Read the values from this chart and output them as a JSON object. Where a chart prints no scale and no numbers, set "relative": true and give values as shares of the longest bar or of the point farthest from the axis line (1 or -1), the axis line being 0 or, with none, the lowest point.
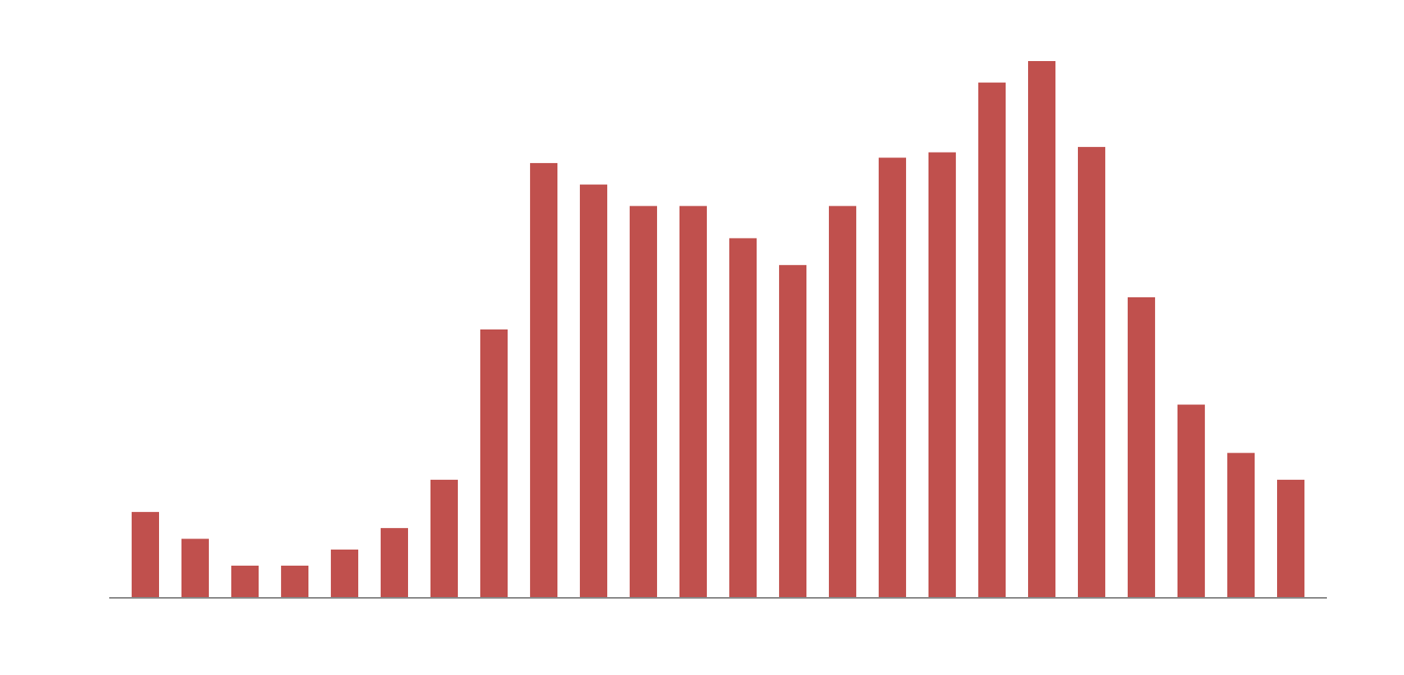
{
  "chart_data": {
    "type": "bar",
    "relative": true,
    "categories": [
      null,
      null,
      null,
      null,
      null,
      null,
      null,
      null,
      null,
      null,
      null,
      null,
      null,
      null,
      null,
      null,
      null,
      null,
      null,
      null,
      null,
      null,
      null,
      null
    ],
    "values": [
      0.16,
      0.11,
      0.06,
      0.06,
      0.09,
      0.13,
      0.22,
      0.5,
      0.81,
      0.77,
      0.73,
      0.73,
      0.67,
      0.62,
      0.73,
      0.82,
      0.83,
      0.96,
      1,
      0.84,
      0.56,
      0.36,
      0.27,
      0.22
    ],
    "color": "#c0504d"
  }
}
